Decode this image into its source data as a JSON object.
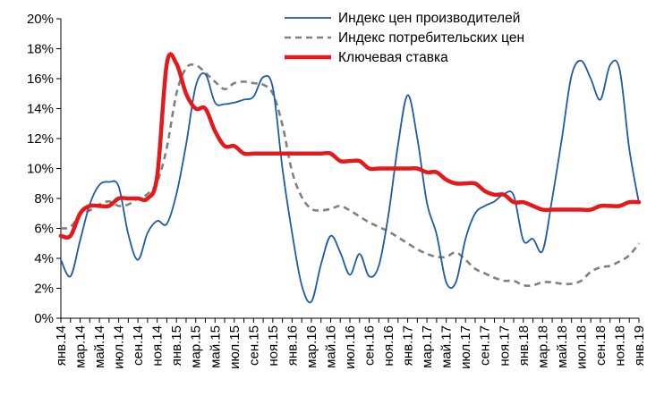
{
  "chart_data": {
    "type": "line",
    "title": "",
    "xlabel": "",
    "ylabel": "",
    "ylim": [
      0,
      20
    ],
    "y_ticks": [
      "0%",
      "2%",
      "4%",
      "6%",
      "8%",
      "10%",
      "12%",
      "14%",
      "16%",
      "18%",
      "20%"
    ],
    "x_tick_labels": [
      "янв.14",
      "мар.14",
      "май.14",
      "июл.14",
      "сен.14",
      "ноя.14",
      "янв.15",
      "мар.15",
      "май.15",
      "июл.15",
      "сен.15",
      "ноя.15",
      "янв.16",
      "мар.16",
      "май.16",
      "июл.16",
      "сен.16",
      "ноя.16",
      "янв.17",
      "мар.17",
      "май.17",
      "июл.17",
      "сен.17",
      "ноя.17",
      "янв.18",
      "мар.18",
      "май.18",
      "июл.18",
      "сен.18",
      "ноя.18",
      "янв.19"
    ],
    "legend_position": "top-right",
    "grid": false,
    "series": [
      {
        "name": "Индекс цен производителей",
        "color": "#1f5aa6",
        "style": "solid",
        "values": [
          3.9,
          2.8,
          5.2,
          7.6,
          8.9,
          9.1,
          8.8,
          5.6,
          3.9,
          5.7,
          6.5,
          6.3,
          8.3,
          11.6,
          15.5,
          16.3,
          14.4,
          14.3,
          14.4,
          14.6,
          14.8,
          16.1,
          15.4,
          10.0,
          5.7,
          2.2,
          1.1,
          3.6,
          5.5,
          4.4,
          2.9,
          4.3,
          2.8,
          3.5,
          6.9,
          11.6,
          14.9,
          12.0,
          7.7,
          5.6,
          2.4,
          2.4,
          5.3,
          7.0,
          7.5,
          7.8,
          8.3,
          8.2,
          5.2,
          5.3,
          4.5,
          8.0,
          12.0,
          16.2,
          17.2,
          16.0,
          14.6,
          16.9,
          16.6,
          11.3,
          7.7
        ]
      },
      {
        "name": "Индекс потребительских цен",
        "color": "#808080",
        "style": "dashed",
        "values": [
          6.0,
          6.1,
          6.9,
          7.2,
          7.6,
          7.8,
          7.5,
          7.6,
          8.0,
          8.3,
          9.1,
          11.4,
          15.0,
          16.7,
          16.9,
          16.4,
          15.8,
          15.3,
          15.7,
          15.8,
          15.7,
          15.6,
          15.0,
          12.9,
          9.8,
          8.1,
          7.3,
          7.2,
          7.3,
          7.5,
          7.2,
          6.8,
          6.4,
          6.1,
          5.8,
          5.4,
          5.0,
          4.6,
          4.3,
          4.1,
          4.1,
          4.4,
          3.9,
          3.3,
          3.0,
          2.7,
          2.5,
          2.5,
          2.2,
          2.2,
          2.4,
          2.4,
          2.3,
          2.3,
          2.5,
          3.1,
          3.4,
          3.5,
          3.8,
          4.2,
          5.0
        ]
      },
      {
        "name": "Ключевая ставка",
        "color": "#e31a1c",
        "style": "solid",
        "values": [
          5.5,
          5.5,
          7.0,
          7.5,
          7.5,
          7.5,
          8.0,
          8.0,
          8.0,
          8.0,
          9.5,
          17.0,
          17.0,
          15.0,
          14.0,
          14.0,
          12.5,
          11.5,
          11.5,
          11.0,
          11.0,
          11.0,
          11.0,
          11.0,
          11.0,
          11.0,
          11.0,
          11.0,
          11.0,
          10.5,
          10.5,
          10.5,
          10.0,
          10.0,
          10.0,
          10.0,
          10.0,
          10.0,
          9.75,
          9.75,
          9.25,
          9.0,
          9.0,
          9.0,
          8.5,
          8.25,
          8.25,
          7.75,
          7.75,
          7.5,
          7.25,
          7.25,
          7.25,
          7.25,
          7.25,
          7.25,
          7.5,
          7.5,
          7.5,
          7.75,
          7.75
        ]
      }
    ]
  }
}
